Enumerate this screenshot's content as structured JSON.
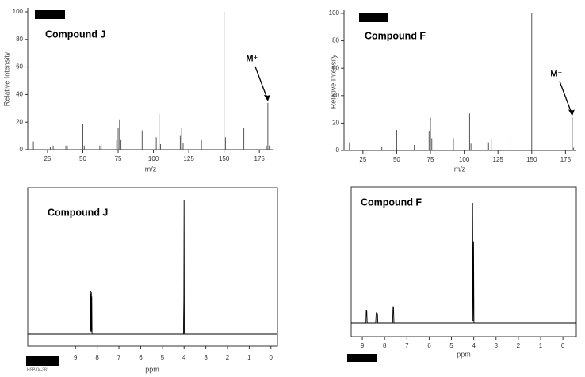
{
  "chart_data": [
    {
      "type": "bar",
      "title": "Compound J",
      "xlabel": "m/z",
      "ylabel": "Relative Intensity",
      "annotation": "M⁺",
      "annotation_x": 181,
      "color": "#555555",
      "x": [
        15,
        27,
        29,
        38,
        39,
        50,
        51,
        62,
        63,
        74,
        75,
        76,
        77,
        92,
        102,
        104,
        105,
        119,
        120,
        121,
        134,
        150,
        151,
        164,
        180,
        181,
        182
      ],
      "values": [
        6,
        2,
        3,
        3,
        3,
        19,
        3,
        3,
        4,
        7,
        16,
        22,
        7,
        14,
        9,
        26,
        4,
        10,
        16,
        5,
        7,
        100,
        9,
        16,
        3,
        34,
        3
      ],
      "xlim": [
        11,
        185
      ],
      "ylim": [
        0,
        100
      ],
      "xticks": [
        25,
        50,
        75,
        100,
        125,
        150,
        175
      ],
      "yticks": [
        0,
        20,
        40,
        60,
        80,
        100
      ]
    },
    {
      "type": "bar",
      "title": "Compound F",
      "xlabel": "m/z",
      "ylabel": "Relative Intensity",
      "annotation": "M⁺",
      "annotation_x": 180,
      "color": "#555555",
      "x": [
        15,
        39,
        50,
        63,
        74,
        75,
        76,
        92,
        104,
        105,
        118,
        120,
        134,
        150,
        151,
        180,
        181
      ],
      "values": [
        6,
        3,
        15,
        4,
        14,
        24,
        9,
        9,
        27,
        5,
        6,
        8,
        9,
        100,
        17,
        24,
        2
      ],
      "xlim": [
        11,
        183
      ],
      "ylim": [
        0,
        100
      ],
      "xticks": [
        25,
        50,
        75,
        100,
        125,
        150,
        175
      ],
      "yticks": [
        0,
        20,
        40,
        60,
        80,
        100
      ]
    },
    {
      "type": "line",
      "title": "Compound J",
      "xlabel": "ppm",
      "code": "HSP-04-381",
      "color": "#000000",
      "x": [
        11.2,
        8.33,
        8.31,
        8.3,
        8.29,
        8.28,
        8.27,
        8.26,
        8.25,
        8.24,
        8.22,
        4.03,
        4.01,
        4.0,
        3.99,
        3.98,
        -0.3
      ],
      "values": [
        0,
        0,
        30,
        2,
        32,
        3,
        31,
        2,
        28,
        0,
        0,
        0,
        26,
        100,
        2,
        0,
        0
      ],
      "xlim": [
        11.2,
        -0.3
      ],
      "ylim": [
        0,
        100
      ],
      "xticks": [
        9,
        8,
        7,
        6,
        5,
        4,
        3,
        2,
        1,
        0
      ]
    },
    {
      "type": "line",
      "title": "Compound F",
      "xlabel": "ppm",
      "color": "#000000",
      "x": [
        9.5,
        8.84,
        8.82,
        8.8,
        8.78,
        8.4,
        8.38,
        8.36,
        8.34,
        8.32,
        8.3,
        7.64,
        7.62,
        7.6,
        7.58,
        4.07,
        4.05,
        4.03,
        4.01,
        3.99,
        -0.6
      ],
      "values": [
        0,
        0,
        11,
        10,
        0,
        0,
        8,
        9,
        9,
        7,
        0,
        0,
        14,
        13,
        0,
        0,
        100,
        2,
        68,
        0,
        0
      ],
      "xlim": [
        9.5,
        -0.6
      ],
      "ylim": [
        0,
        100
      ],
      "xticks": [
        9,
        8,
        7,
        6,
        5,
        4,
        3,
        2,
        1,
        0
      ]
    }
  ]
}
